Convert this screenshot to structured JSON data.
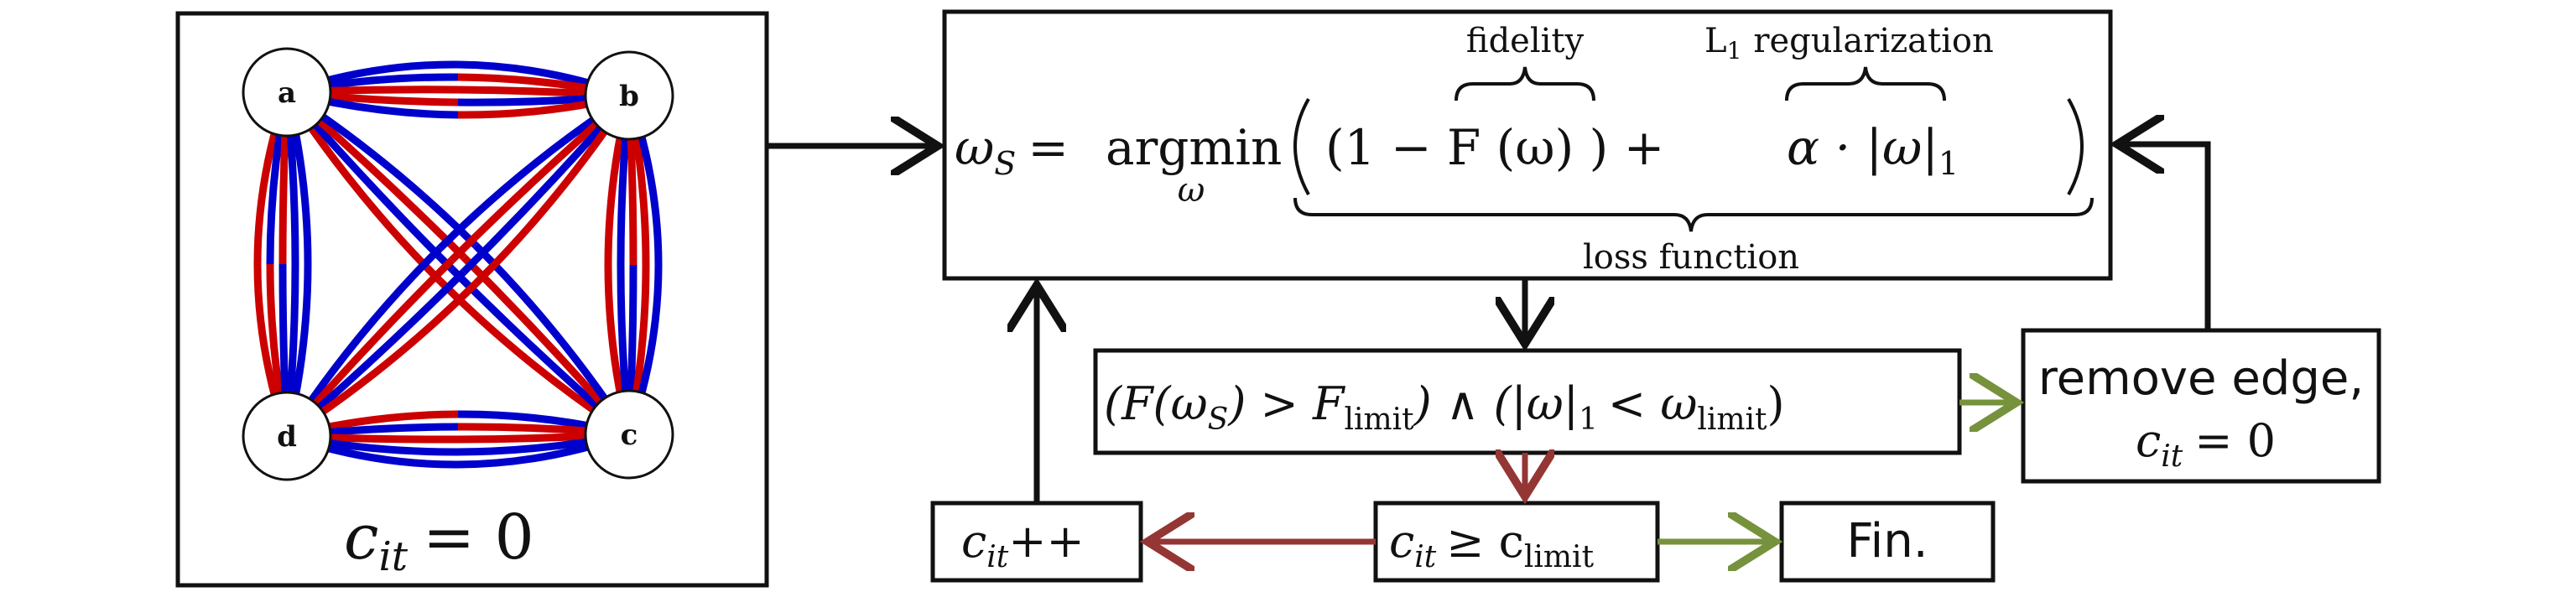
{
  "graph": {
    "nodes": [
      {
        "id": "a",
        "label": "a"
      },
      {
        "id": "b",
        "label": "b"
      },
      {
        "id": "c",
        "label": "c"
      },
      {
        "id": "d",
        "label": "d"
      }
    ],
    "counter_label": "c",
    "counter_sub": "it",
    "counter_value": "= 0",
    "colors": {
      "red": "#cc0000",
      "blue": "#0000cc"
    }
  },
  "optimization": {
    "lhs": "ω",
    "lhs_sub": "S",
    "equals": "=",
    "argmin": "argmin",
    "argmin_sub": "ω",
    "fidelity_label": "fidelity",
    "reg_label_L": "L",
    "reg_label_sub": "1",
    "reg_label_rest": "regularization",
    "term1": "(1 − F (ω) ) +",
    "term2": "α · |ω|",
    "term2_sub": "1",
    "loss_label": "loss function"
  },
  "condition": {
    "text_a": "(F(ω",
    "text_a_sub": "S",
    "text_b": ") > F",
    "text_b_sub": "limit",
    "text_c": ") ∧ (|ω|",
    "text_c_sub": "1",
    "text_d": "< ω",
    "text_d_sub": "limit",
    "text_e": ")"
  },
  "remove_edge": {
    "line1": "remove edge,",
    "line2_c": "c",
    "line2_sub": "it",
    "line2_rest": "= 0"
  },
  "increment": {
    "c": "c",
    "sub": "it",
    "rest": "++"
  },
  "limit_check": {
    "c": "c",
    "sub": "it",
    "rest": "≥ c",
    "rest_sub": "limit"
  },
  "finish": {
    "label": "Fin."
  },
  "arrow_colors": {
    "black": "#111111",
    "green": "#76923c",
    "red": "#943634"
  }
}
